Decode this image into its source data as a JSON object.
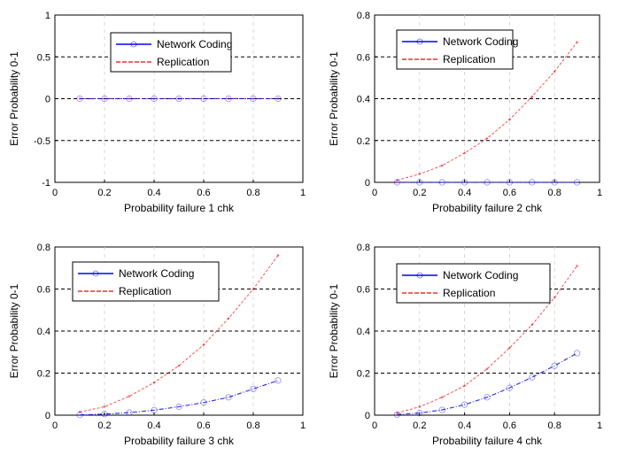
{
  "chart_data": [
    {
      "type": "line",
      "xlabel": "Probability  failure 1 chk",
      "ylabel": "Error Probability 0-1",
      "xlim": [
        0,
        1
      ],
      "ylim": [
        -1,
        1
      ],
      "xticks": [
        "0",
        "0.2",
        "0.4",
        "0.6",
        "0.8",
        "1"
      ],
      "yticks": [
        "-1",
        "-0.5",
        "0",
        "0.5",
        "1"
      ],
      "ytick_values": [
        -1,
        -0.5,
        0,
        0.5,
        1
      ],
      "grid": "dashed",
      "legend_position": "top-center",
      "x": [
        0.1,
        0.2,
        0.3,
        0.4,
        0.5,
        0.6,
        0.7,
        0.8,
        0.9
      ],
      "series": [
        {
          "name": "Network Coding",
          "color": "#0000ff",
          "marker": "circle",
          "values": [
            0,
            0,
            0,
            0,
            0,
            0,
            0,
            0,
            0
          ]
        },
        {
          "name": "Replication",
          "color": "#ff0000",
          "marker": "dot",
          "values": [
            0,
            0,
            0,
            0,
            0,
            0,
            0,
            0,
            0
          ]
        }
      ]
    },
    {
      "type": "line",
      "xlabel": "Probability  failure 2 chk",
      "ylabel": "Error Probability 0-1",
      "xlim": [
        0,
        1
      ],
      "ylim": [
        0,
        0.8
      ],
      "xticks": [
        "0",
        "0.2",
        "0.4",
        "0.6",
        "0.8",
        "1"
      ],
      "yticks": [
        "0",
        "0.2",
        "0.4",
        "0.6",
        "0.8"
      ],
      "ytick_values": [
        0,
        0.2,
        0.4,
        0.6,
        0.8
      ],
      "grid": "dashed",
      "legend_position": "top-center",
      "x": [
        0.1,
        0.2,
        0.3,
        0.4,
        0.5,
        0.6,
        0.7,
        0.8,
        0.9
      ],
      "series": [
        {
          "name": "Network Coding",
          "color": "#0000ff",
          "marker": "circle",
          "values": [
            0,
            0,
            0,
            0,
            0,
            0,
            0,
            0,
            0
          ]
        },
        {
          "name": "Replication",
          "color": "#ff0000",
          "marker": "dot",
          "values": [
            0.01,
            0.04,
            0.08,
            0.14,
            0.21,
            0.3,
            0.41,
            0.53,
            0.67
          ]
        }
      ]
    },
    {
      "type": "line",
      "xlabel": "Probability  failure 3 chk",
      "ylabel": "Error Probability 0-1",
      "xlim": [
        0,
        1
      ],
      "ylim": [
        0,
        0.8
      ],
      "xticks": [
        "0",
        "0.2",
        "0.4",
        "0.6",
        "0.8",
        "1"
      ],
      "yticks": [
        "0",
        "0.2",
        "0.4",
        "0.6",
        "0.8"
      ],
      "ytick_values": [
        0,
        0.2,
        0.4,
        0.6,
        0.8
      ],
      "grid": "dashed",
      "legend_position": "top-center",
      "x": [
        0.1,
        0.2,
        0.3,
        0.4,
        0.5,
        0.6,
        0.7,
        0.8,
        0.9
      ],
      "series": [
        {
          "name": "Network Coding",
          "color": "#0000ff",
          "marker": "circle",
          "values": [
            0.001,
            0.005,
            0.012,
            0.024,
            0.04,
            0.06,
            0.085,
            0.125,
            0.165
          ]
        },
        {
          "name": "Replication",
          "color": "#ff0000",
          "marker": "dot",
          "values": [
            0.015,
            0.04,
            0.09,
            0.155,
            0.235,
            0.335,
            0.46,
            0.6,
            0.76
          ]
        }
      ]
    },
    {
      "type": "line",
      "xlabel": "Probability  failure 4 chk",
      "ylabel": "Error Probability 0-1",
      "xlim": [
        0,
        1
      ],
      "ylim": [
        0,
        0.8
      ],
      "xticks": [
        "0",
        "0.2",
        "0.4",
        "0.6",
        "0.8",
        "1"
      ],
      "yticks": [
        "0",
        "0.2",
        "0.4",
        "0.6",
        "0.8"
      ],
      "ytick_values": [
        0,
        0.2,
        0.4,
        0.6,
        0.8
      ],
      "grid": "dashed",
      "legend_position": "top-center",
      "x": [
        0.1,
        0.2,
        0.3,
        0.4,
        0.5,
        0.6,
        0.7,
        0.8,
        0.9
      ],
      "series": [
        {
          "name": "Network Coding",
          "color": "#0000ff",
          "marker": "circle",
          "values": [
            0.003,
            0.01,
            0.025,
            0.05,
            0.085,
            0.13,
            0.18,
            0.235,
            0.295
          ]
        },
        {
          "name": "Replication",
          "color": "#ff0000",
          "marker": "dot",
          "values": [
            0.01,
            0.04,
            0.085,
            0.14,
            0.22,
            0.32,
            0.43,
            0.56,
            0.71
          ]
        }
      ]
    }
  ]
}
